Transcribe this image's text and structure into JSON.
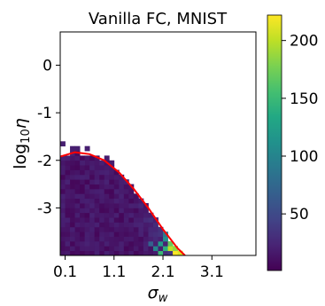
{
  "chart_data": {
    "type": "heatmap",
    "title": "Vanilla FC, MNIST",
    "xlabel_base": "σ",
    "xlabel_sub": "w",
    "ylabel_base": "log",
    "ylabel_sub": "10",
    "ylabel_tail": "η",
    "xlim": [
      0.0,
      4.0
    ],
    "ylim": [
      -4.0,
      0.7
    ],
    "x_ticks": [
      0.1,
      1.1,
      2.1,
      3.1
    ],
    "x_tick_labels": [
      "0.1",
      "1.1",
      "2.1",
      "3.1"
    ],
    "y_ticks": [
      0,
      -1,
      -2,
      -3
    ],
    "y_tick_labels": [
      "0",
      "-1",
      "-2",
      "-3"
    ],
    "colorbar": {
      "min": 1,
      "max": 222,
      "ticks": [
        50,
        100,
        150,
        200
      ],
      "tick_labels": [
        "50",
        "100",
        "150",
        "200"
      ],
      "colormap": "viridis"
    },
    "cell_size": {
      "dx": 0.1,
      "dy": 0.1
    },
    "grid": false,
    "boundary_curve": {
      "color": "#ff0000",
      "x": [
        0.0,
        0.3,
        0.6,
        0.9,
        1.2,
        1.5,
        1.8,
        2.1,
        2.4,
        2.55
      ],
      "y": [
        -1.92,
        -1.83,
        -1.87,
        -2.0,
        -2.25,
        -2.6,
        -3.0,
        -3.45,
        -3.85,
        -4.0
      ]
    },
    "isolated_cells": [
      {
        "x": 0.05,
        "y": -1.65,
        "value": 20
      },
      {
        "x": 0.25,
        "y": -1.75,
        "value": 20
      },
      {
        "x": 0.35,
        "y": -1.75,
        "value": 20
      },
      {
        "x": 0.55,
        "y": -1.75,
        "value": 20
      },
      {
        "x": 0.95,
        "y": -1.95,
        "value": 18
      },
      {
        "x": 1.05,
        "y": -2.05,
        "value": 18
      },
      {
        "x": 0.45,
        "y": -2.05,
        "value": 20
      }
    ],
    "high_value_cells": [
      {
        "x": 2.05,
        "y": -3.75,
        "value": 120
      },
      {
        "x": 2.15,
        "y": -3.55,
        "value": 90
      },
      {
        "x": 2.15,
        "y": -3.65,
        "value": 110
      },
      {
        "x": 2.15,
        "y": -3.85,
        "value": 140
      },
      {
        "x": 2.25,
        "y": -3.75,
        "value": 170
      },
      {
        "x": 2.25,
        "y": -3.85,
        "value": 200
      },
      {
        "x": 2.35,
        "y": -3.85,
        "value": 185
      },
      {
        "x": 2.35,
        "y": -3.95,
        "value": 222
      },
      {
        "x": 2.45,
        "y": -3.95,
        "value": 210
      },
      {
        "x": 2.05,
        "y": -3.95,
        "value": 150
      },
      {
        "x": 1.95,
        "y": -3.85,
        "value": 100
      },
      {
        "x": 1.85,
        "y": -3.75,
        "value": 70
      }
    ]
  }
}
